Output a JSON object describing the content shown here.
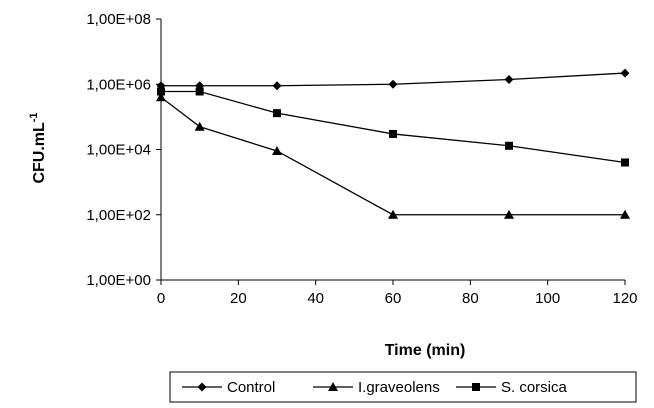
{
  "chart_data": {
    "type": "line",
    "xlabel": "Time (min)",
    "ylabel": "CFU.mL",
    "ylabel_superscript": "-1",
    "y_scale": "log",
    "xlim": [
      0,
      120
    ],
    "ylim": [
      1,
      100000000
    ],
    "x_ticks": [
      "0",
      "20",
      "40",
      "60",
      "80",
      "100",
      "120"
    ],
    "y_ticks": [
      "1,00E+00",
      "1,00E+02",
      "1,00E+04",
      "1,00E+06",
      "1,00E+08"
    ],
    "grid": false,
    "legend_position": "bottom",
    "series": [
      {
        "name": "Control",
        "marker": "diamond",
        "x": [
          0,
          10,
          30,
          60,
          90,
          120
        ],
        "y": [
          900000,
          900000,
          900000,
          1000000,
          1400000,
          2200000
        ]
      },
      {
        "name": "I.graveolens",
        "marker": "triangle",
        "x": [
          0,
          10,
          30,
          60,
          90,
          120
        ],
        "y": [
          400000,
          50000,
          9000,
          100,
          100,
          100
        ]
      },
      {
        "name": "S. corsica",
        "marker": "square",
        "x": [
          0,
          10,
          30,
          60,
          90,
          120
        ],
        "y": [
          600000,
          600000,
          130000,
          30000,
          13000,
          4000
        ]
      }
    ]
  }
}
